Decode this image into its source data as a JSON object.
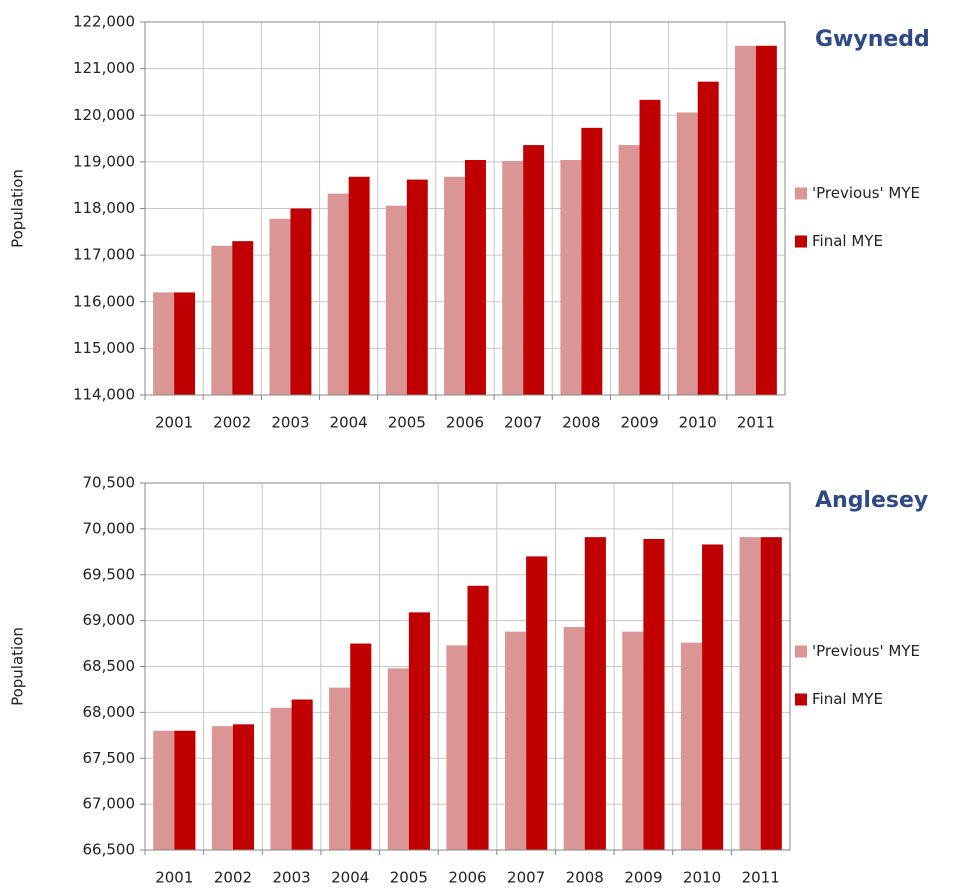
{
  "chart_data": [
    {
      "type": "bar",
      "title": "Gwynedd",
      "y_label": "Population",
      "legend": "right",
      "grid": true,
      "categories": [
        "2001",
        "2002",
        "2003",
        "2004",
        "2005",
        "2006",
        "2007",
        "2008",
        "2009",
        "2010",
        "2011"
      ],
      "series": [
        {
          "name": "'Previous' MYE",
          "color": "#d99694",
          "values": [
            116200,
            117200,
            117780,
            118320,
            118060,
            118680,
            119020,
            119040,
            119360,
            120060,
            121490
          ]
        },
        {
          "name": "Final MYE",
          "color": "#c00000",
          "values": [
            116200,
            117300,
            118000,
            118680,
            118620,
            119040,
            119360,
            119730,
            120330,
            120720,
            121490
          ]
        }
      ],
      "ylim": [
        114000,
        122000
      ],
      "yticks": [
        {
          "value": 114000,
          "label": "114,000"
        },
        {
          "value": 115000,
          "label": "115,000"
        },
        {
          "value": 116000,
          "label": "116,000"
        },
        {
          "value": 117000,
          "label": "117,000"
        },
        {
          "value": 118000,
          "label": "118,000"
        },
        {
          "value": 119000,
          "label": "119,000"
        },
        {
          "value": 120000,
          "label": "120,000"
        },
        {
          "value": 121000,
          "label": "121,000"
        },
        {
          "value": 122000,
          "label": "122,000"
        }
      ]
    },
    {
      "type": "bar",
      "title": "Anglesey",
      "y_label": "Population",
      "legend": "right",
      "grid": true,
      "categories": [
        "2001",
        "2002",
        "2003",
        "2004",
        "2005",
        "2006",
        "2007",
        "2008",
        "2009",
        "2010",
        "2011"
      ],
      "series": [
        {
          "name": "'Previous' MYE",
          "color": "#d99694",
          "values": [
            67800,
            67850,
            68050,
            68270,
            68480,
            68730,
            68880,
            68930,
            68880,
            68760,
            69910
          ]
        },
        {
          "name": "Final MYE",
          "color": "#c00000",
          "values": [
            67800,
            67870,
            68140,
            68750,
            69090,
            69380,
            69700,
            69910,
            69890,
            69830,
            69910
          ]
        }
      ],
      "ylim": [
        66500,
        70500
      ],
      "yticks": [
        {
          "value": 66500,
          "label": "66,500"
        },
        {
          "value": 67000,
          "label": "67,000"
        },
        {
          "value": 67500,
          "label": "67,500"
        },
        {
          "value": 68000,
          "label": "68,000"
        },
        {
          "value": 68500,
          "label": "68,500"
        },
        {
          "value": 69000,
          "label": "69,000"
        },
        {
          "value": 69500,
          "label": "69,500"
        },
        {
          "value": 70000,
          "label": "70,000"
        },
        {
          "value": 70500,
          "label": "70,500"
        }
      ]
    }
  ]
}
